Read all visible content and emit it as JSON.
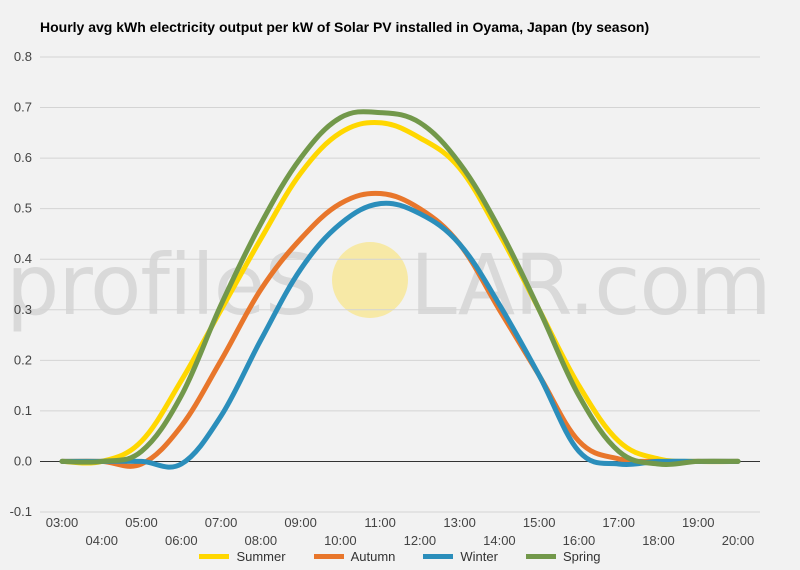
{
  "chart_data": {
    "type": "line",
    "title": "Hourly avg kWh electricity output per kW of Solar PV installed in Oyama, Japan (by season)",
    "xlabel": "",
    "ylabel": "",
    "ylim": [
      -0.1,
      0.8
    ],
    "yticks": [
      "0.8",
      "0.7",
      "0.6",
      "0.5",
      "0.4",
      "0.3",
      "0.2",
      "0.1",
      "0.0",
      "-0.1"
    ],
    "grid": true,
    "legend_position": "bottom",
    "watermark": {
      "left": "profileS",
      "right": "LAR.com",
      "sun_color": "#f7e9a6"
    },
    "x": [
      "03:00",
      "04:00",
      "05:00",
      "06:00",
      "07:00",
      "08:00",
      "09:00",
      "10:00",
      "11:00",
      "12:00",
      "13:00",
      "14:00",
      "15:00",
      "16:00",
      "17:00",
      "18:00",
      "19:00",
      "20:00"
    ],
    "series": [
      {
        "name": "Summer",
        "color": "#ffd700",
        "values": [
          0,
          0,
          0.04,
          0.16,
          0.3,
          0.44,
          0.57,
          0.65,
          0.67,
          0.64,
          0.58,
          0.45,
          0.3,
          0.15,
          0.04,
          0.005,
          0,
          0
        ]
      },
      {
        "name": "Autumn",
        "color": "#e8762b",
        "values": [
          0,
          0,
          -0.005,
          0.07,
          0.2,
          0.34,
          0.44,
          0.51,
          0.53,
          0.5,
          0.43,
          0.3,
          0.17,
          0.04,
          0.005,
          0,
          0,
          0
        ]
      },
      {
        "name": "Winter",
        "color": "#2b8ebb",
        "values": [
          0,
          0,
          0,
          -0.005,
          0.09,
          0.24,
          0.38,
          0.47,
          0.51,
          0.49,
          0.43,
          0.31,
          0.17,
          0.02,
          -0.005,
          0,
          0,
          0
        ]
      },
      {
        "name": "Spring",
        "color": "#72984a",
        "values": [
          0,
          0,
          0.02,
          0.13,
          0.31,
          0.47,
          0.6,
          0.68,
          0.69,
          0.67,
          0.59,
          0.46,
          0.3,
          0.13,
          0.02,
          -0.005,
          0,
          0
        ]
      }
    ]
  }
}
